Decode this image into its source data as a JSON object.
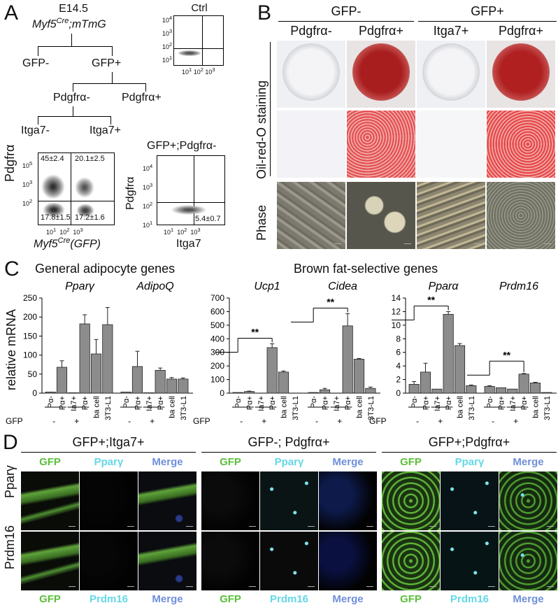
{
  "panels": {
    "a": "A",
    "b": "B",
    "c": "C",
    "d": "D"
  },
  "a": {
    "embryo": "E14.5",
    "genotype": "Myf5",
    "genotype_sup": "Cre",
    "genotype_rest": ";mTmG",
    "gfp_minus": "GFP-",
    "gfp_plus": "GFP+",
    "pdgfra_minus": "Pdgfrα-",
    "pdgfra_plus": "Pdgfrα+",
    "itga7_minus": "Itga7-",
    "itga7_plus": "Itga7+",
    "ctrl": "Ctrl",
    "ctrl_yticks": [
      "10",
      "10",
      "10",
      "10"
    ],
    "ctrl_yexp": [
      "4",
      "3",
      "2",
      "1"
    ],
    "ctrl_xticks": [
      "10",
      "10",
      "10"
    ],
    "ctrl_xexp": [
      "1",
      "2",
      "3"
    ],
    "fc1_yticks": [
      "10",
      "10",
      "10"
    ],
    "fc1_yexp": [
      "5",
      "3",
      "2"
    ],
    "fc1_xticks": [
      "10",
      "10",
      "10"
    ],
    "fc1_xexp": [
      "1",
      "2",
      "3"
    ],
    "fc1_ylabel": "Pdgfrα",
    "fc1_xlabel": "Myf5",
    "fc1_xlabel_sup": "Cre",
    "fc1_xlabel_rest": "(GFP)",
    "fc1_q": [
      "45±2.4",
      "20.1±2.5",
      "17.8±1.5",
      "17.2±1.6"
    ],
    "fc2_title": "GFP+;Pdgfrα-",
    "fc2_ylabel": "Pdgfrα",
    "fc2_xlabel": "Itga7",
    "fc2_yticks": [
      "10",
      "10",
      "10",
      "10"
    ],
    "fc2_yexp": [
      "4",
      "3",
      "2",
      "1"
    ],
    "fc2_xticks": [
      "10",
      "10",
      "10"
    ],
    "fc2_xexp": [
      "1",
      "2",
      "3"
    ],
    "fc2_q": "5.4±0.7"
  },
  "b": {
    "group_minus": "GFP-",
    "group_plus": "GFP+",
    "cols": [
      "Pdgfrα-",
      "Pdgfrα+",
      "Itga7+",
      "Pdgfrα+"
    ],
    "row_stain": "Oil-red-O staining",
    "row_phase": "Phase"
  },
  "c": {
    "general_title": "General adipocyte genes",
    "brown_title": "Brown fat-selective genes",
    "ylabel": "relative mRNA",
    "gfp_label": "GFP",
    "sig": "**",
    "gfp_marks": [
      "-",
      "+"
    ],
    "xcats": [
      "Pα-",
      "Pα+",
      "Ia7+",
      "Pα+",
      "ba cell",
      "3T3-L1"
    ]
  },
  "chart_data": [
    {
      "type": "bar",
      "genes": [
        "Pparγ",
        "AdipoQ"
      ],
      "categories": [
        "Pα-",
        "Pα+",
        "Ia7+",
        "Pα+",
        "ba cell",
        "3T3-L1"
      ],
      "series": [
        {
          "name": "Pparγ",
          "values": [
            3,
            68,
            1,
            182,
            103,
            180
          ],
          "errors": [
            0,
            17,
            0,
            24,
            38,
            45
          ]
        },
        {
          "name": "AdipoQ",
          "values": [
            3,
            70,
            1,
            60,
            37,
            37
          ],
          "errors": [
            0,
            40,
            0,
            6,
            4,
            3
          ]
        }
      ],
      "ylabel": "relative mRNA",
      "ylim": [
        0,
        250
      ],
      "yticks": [
        0,
        50,
        100,
        150,
        200,
        250
      ]
    },
    {
      "type": "bar",
      "genes": [
        "Ucp1",
        "Cidea"
      ],
      "categories": [
        "Pα-",
        "Pα+",
        "Ia7+",
        "Pα+",
        "ba cell",
        "3T3-L1"
      ],
      "series": [
        {
          "name": "Ucp1",
          "values": [
            5,
            12,
            0,
            335,
            155,
            0
          ],
          "errors": [
            0,
            3,
            0,
            28,
            8,
            0
          ]
        },
        {
          "name": "Cidea",
          "values": [
            5,
            25,
            0,
            495,
            250,
            35
          ],
          "errors": [
            0,
            10,
            0,
            90,
            5,
            10
          ]
        }
      ],
      "ylim": [
        0,
        700
      ],
      "yticks": [
        0,
        100,
        200,
        300,
        400,
        500,
        600,
        700
      ]
    },
    {
      "type": "bar",
      "genes": [
        "Pparα",
        "Prdm16"
      ],
      "categories": [
        "Pα-",
        "Pα+",
        "Ia7+",
        "Pα+",
        "ba cell",
        "3T3-L1"
      ],
      "series": [
        {
          "name": "Pparα",
          "values": [
            1.3,
            3.1,
            0.6,
            11.6,
            7.0,
            1.1
          ],
          "errors": [
            0.4,
            1.3,
            0,
            0.4,
            0.3,
            0.1
          ]
        },
        {
          "name": "Prdm16",
          "values": [
            1.0,
            0.8,
            0.6,
            2.8,
            1.5,
            0.1
          ],
          "errors": [
            0.1,
            0,
            0,
            0.1,
            0.1,
            0
          ]
        }
      ],
      "ylim": [
        0,
        14
      ],
      "yticks": [
        0,
        2,
        4,
        6,
        8,
        10,
        12,
        14
      ]
    }
  ],
  "d": {
    "groups": [
      "GFP+;Itga7+",
      "GFP-; Pdgfrα+",
      "GFP+;Pdgfrα+"
    ],
    "ch_top": [
      "GFP",
      "Pparγ",
      "Merge"
    ],
    "ch_bottom": [
      "GFP",
      "Prdm16",
      "Merge"
    ],
    "rows": [
      "Pparγ",
      "Prdm16"
    ],
    "colors": {
      "green": "#5bbf3a",
      "cyan": "#63d8e6",
      "blue": "#6f8fd9"
    }
  }
}
